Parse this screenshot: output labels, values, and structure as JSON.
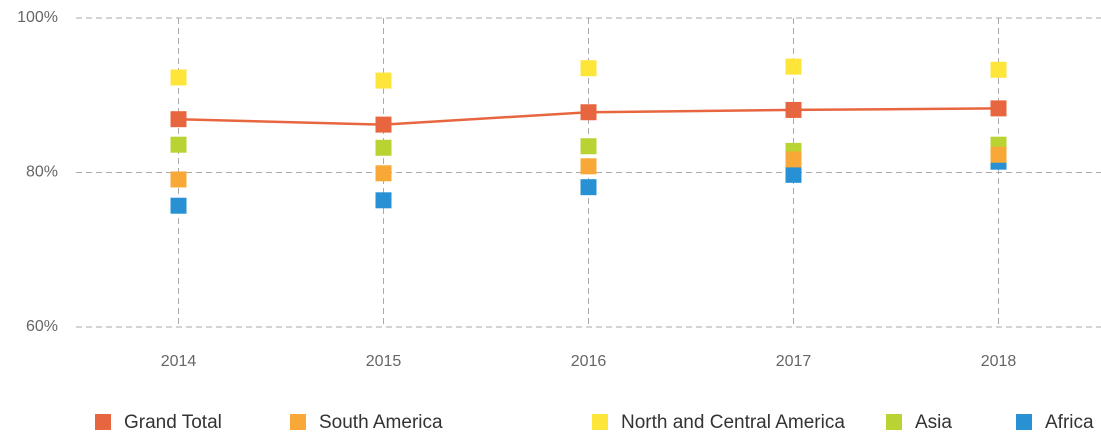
{
  "chart_data": {
    "type": "line",
    "categories": [
      "2014",
      "2015",
      "2016",
      "2017",
      "2018"
    ],
    "series": [
      {
        "name": "Grand Total",
        "color": "#e8663f",
        "line": true,
        "values": [
          86.9,
          86.2,
          87.8,
          88.1,
          88.3
        ]
      },
      {
        "name": "South America",
        "color": "#f7a836",
        "line": false,
        "values": [
          79.1,
          79.9,
          80.8,
          81.7,
          82.3
        ]
      },
      {
        "name": "North and Central America",
        "color": "#fde53a",
        "line": false,
        "values": [
          92.3,
          91.9,
          93.5,
          93.7,
          93.3
        ]
      },
      {
        "name": "Asia",
        "color": "#b9d332",
        "line": false,
        "values": [
          83.6,
          83.2,
          83.4,
          82.8,
          83.6
        ]
      },
      {
        "name": "Africa",
        "color": "#2891d4",
        "line": false,
        "values": [
          75.7,
          76.4,
          78.1,
          79.7,
          81.4
        ]
      }
    ],
    "ylim": [
      60,
      100
    ],
    "yticks": [
      {
        "value": 60,
        "label": "60%"
      },
      {
        "value": 80,
        "label": "80%"
      },
      {
        "value": 100,
        "label": "100%"
      }
    ],
    "grid": true
  }
}
